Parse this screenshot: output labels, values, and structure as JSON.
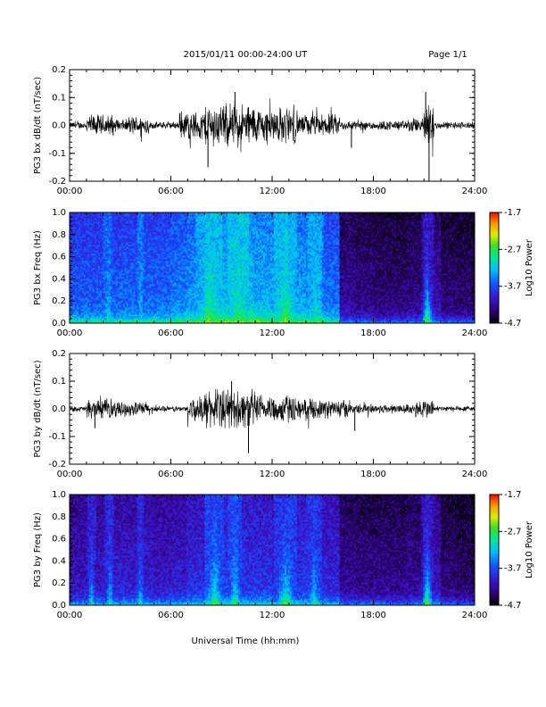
{
  "header": {
    "date_range": "2015/01/11  00:00-24:00 UT",
    "page": "Page 1/1"
  },
  "xlabel": "Universal Time (hh:mm)",
  "time_ticks": [
    "00:00",
    "06:00",
    "12:00",
    "18:00",
    "24:00"
  ],
  "chart_data": [
    {
      "type": "line",
      "ylabel": "PG3 bx dB/dt (nT/sec)",
      "xlim": [
        0,
        24
      ],
      "ylim": [
        -0.2,
        0.2
      ],
      "yticks": [
        "-0.2",
        "-0.1",
        "0.0",
        "0.1",
        "0.2"
      ],
      "x_unit": "hours UT",
      "envelope": [
        {
          "start": 0.0,
          "end": 1.0,
          "amp": 0.015
        },
        {
          "start": 1.0,
          "end": 2.6,
          "amp": 0.045
        },
        {
          "start": 2.6,
          "end": 3.5,
          "amp": 0.025
        },
        {
          "start": 3.5,
          "end": 4.7,
          "amp": 0.04
        },
        {
          "start": 4.7,
          "end": 6.5,
          "amp": 0.015
        },
        {
          "start": 6.5,
          "end": 8.0,
          "amp": 0.06
        },
        {
          "start": 8.0,
          "end": 11.0,
          "amp": 0.09
        },
        {
          "start": 11.0,
          "end": 13.5,
          "amp": 0.075
        },
        {
          "start": 13.5,
          "end": 16.0,
          "amp": 0.045
        },
        {
          "start": 16.0,
          "end": 20.0,
          "amp": 0.02
        },
        {
          "start": 20.0,
          "end": 21.0,
          "amp": 0.03
        },
        {
          "start": 21.0,
          "end": 21.6,
          "amp": 0.11
        },
        {
          "start": 21.6,
          "end": 24.0,
          "amp": 0.015
        }
      ],
      "spikes": [
        {
          "t": 8.2,
          "v": -0.15
        },
        {
          "t": 21.1,
          "v": 0.12
        },
        {
          "t": 21.3,
          "v": -0.21
        },
        {
          "t": 9.8,
          "v": 0.12
        },
        {
          "t": 16.7,
          "v": -0.08
        }
      ]
    },
    {
      "type": "heatmap",
      "ylabel": "PG3 bx Freq (Hz)",
      "colorbar_label": "Log10 Power",
      "xlim": [
        0,
        24
      ],
      "ylim": [
        0.0,
        1.0
      ],
      "yticks": [
        "0.0",
        "0.2",
        "0.4",
        "0.6",
        "0.8",
        "1.0"
      ],
      "clim": [
        -4.7,
        -1.7
      ],
      "cticks": [
        "-1.7",
        "-2.7",
        "-3.7",
        "-4.7"
      ],
      "background_by_hour": [
        -3.6,
        -3.6,
        -3.6,
        -3.55,
        -3.55,
        -3.55,
        -3.45,
        -3.35,
        -3.25,
        -3.2,
        -3.2,
        -3.25,
        -3.25,
        -3.3,
        -3.35,
        -3.5,
        -4.2,
        -4.25,
        -4.3,
        -4.3,
        -4.25,
        -4.1,
        -4.3,
        -4.35
      ],
      "bursts": [
        {
          "t": 2.3,
          "width": 0.5,
          "power": -3.0
        },
        {
          "t": 4.2,
          "width": 0.4,
          "power": -3.1
        },
        {
          "t": 8.3,
          "width": 1.6,
          "power": -2.7
        },
        {
          "t": 10.0,
          "width": 1.2,
          "power": -2.8
        },
        {
          "t": 12.8,
          "width": 1.4,
          "power": -2.7
        },
        {
          "t": 14.6,
          "width": 1.0,
          "power": -3.0
        },
        {
          "t": 21.2,
          "width": 0.8,
          "power": -2.6
        }
      ]
    },
    {
      "type": "line",
      "ylabel": "PG3 by dB/dt (nT/sec)",
      "xlim": [
        0,
        24
      ],
      "ylim": [
        -0.2,
        0.2
      ],
      "yticks": [
        "-0.2",
        "-0.1",
        "0.0",
        "0.1",
        "0.2"
      ],
      "x_unit": "hours UT",
      "envelope": [
        {
          "start": 0.0,
          "end": 1.0,
          "amp": 0.012
        },
        {
          "start": 1.0,
          "end": 2.8,
          "amp": 0.04
        },
        {
          "start": 2.8,
          "end": 4.8,
          "amp": 0.03
        },
        {
          "start": 4.8,
          "end": 7.0,
          "amp": 0.012
        },
        {
          "start": 7.0,
          "end": 8.0,
          "amp": 0.05
        },
        {
          "start": 8.0,
          "end": 11.0,
          "amp": 0.08
        },
        {
          "start": 11.0,
          "end": 13.5,
          "amp": 0.06
        },
        {
          "start": 13.5,
          "end": 16.5,
          "amp": 0.04
        },
        {
          "start": 16.5,
          "end": 20.5,
          "amp": 0.02
        },
        {
          "start": 20.5,
          "end": 21.6,
          "amp": 0.04
        },
        {
          "start": 21.6,
          "end": 24.0,
          "amp": 0.012
        }
      ],
      "spikes": [
        {
          "t": 10.6,
          "v": -0.16
        },
        {
          "t": 9.6,
          "v": 0.1
        },
        {
          "t": 1.5,
          "v": -0.07
        },
        {
          "t": 16.9,
          "v": -0.08
        }
      ]
    },
    {
      "type": "heatmap",
      "ylabel": "PG3 by Freq (Hz)",
      "colorbar_label": "Log10 Power",
      "xlim": [
        0,
        24
      ],
      "ylim": [
        0.0,
        1.0
      ],
      "yticks": [
        "0.0",
        "0.2",
        "0.4",
        "0.6",
        "0.8",
        "1.0"
      ],
      "clim": [
        -4.7,
        -1.7
      ],
      "cticks": [
        "-1.7",
        "-2.7",
        "-3.7",
        "-4.7"
      ],
      "background_by_hour": [
        -4.05,
        -4.0,
        -3.95,
        -3.95,
        -3.95,
        -4.0,
        -3.95,
        -3.85,
        -3.75,
        -3.75,
        -3.8,
        -3.8,
        -3.85,
        -3.8,
        -3.85,
        -3.9,
        -4.2,
        -4.25,
        -4.25,
        -4.25,
        -4.2,
        -4.05,
        -4.3,
        -4.35
      ],
      "bursts": [
        {
          "t": 1.3,
          "width": 0.5,
          "power": -3.1
        },
        {
          "t": 2.4,
          "width": 0.5,
          "power": -3.0
        },
        {
          "t": 4.2,
          "width": 0.5,
          "power": -3.1
        },
        {
          "t": 8.6,
          "width": 1.2,
          "power": -2.8
        },
        {
          "t": 9.8,
          "width": 0.8,
          "power": -2.9
        },
        {
          "t": 12.8,
          "width": 1.4,
          "power": -2.8
        },
        {
          "t": 14.5,
          "width": 0.9,
          "power": -3.0
        },
        {
          "t": 21.2,
          "width": 0.8,
          "power": -2.6
        }
      ]
    }
  ]
}
